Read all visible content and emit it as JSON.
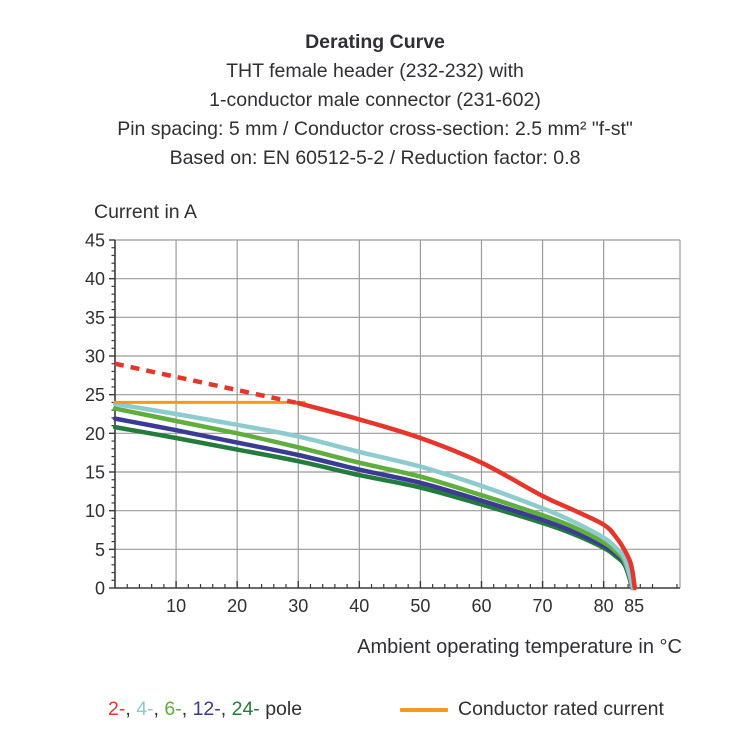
{
  "header": {
    "lines": [
      "Derating Curve",
      "THT female header (232-232) with",
      "1-conductor male connector (231-602)",
      "Pin spacing: 5 mm / Conductor cross-section: 2.5 mm² \"f-st\"",
      "Based on: EN 60512-5-2 / Reduction factor: 0.8"
    ]
  },
  "chart_data": {
    "type": "line",
    "title": "Derating Curve",
    "xlabel": "Ambient operating temperature in °C",
    "ylabel": "Current in A",
    "xlim": [
      0,
      92.5
    ],
    "ylim": [
      0,
      45
    ],
    "x_ticks_major": [
      10,
      20,
      30,
      40,
      50,
      60,
      70,
      80,
      85
    ],
    "x_minor_step": 2,
    "y_ticks_major": [
      0,
      5,
      10,
      15,
      20,
      25,
      30,
      35,
      40,
      45
    ],
    "y_minor_step": 1,
    "x_gridlines": [
      10,
      20,
      30,
      40,
      50,
      60,
      70,
      80
    ],
    "y_gridlines": [
      5,
      10,
      15,
      20,
      25,
      30,
      35,
      40,
      45
    ],
    "grid_on": true,
    "grid_color": "#9b9b9b",
    "axis_color": "#3a3a3a",
    "legend_position": "bottom",
    "series": [
      {
        "name": "24-pole",
        "color": "#237b3c",
        "style": "solid",
        "width": 4.5,
        "points": [
          [
            0,
            20.8
          ],
          [
            10,
            19.4
          ],
          [
            20,
            17.9
          ],
          [
            30,
            16.4
          ],
          [
            40,
            14.6
          ],
          [
            50,
            13.0
          ],
          [
            60,
            10.8
          ],
          [
            70,
            8.4
          ],
          [
            75,
            7.0
          ],
          [
            80,
            5.2
          ],
          [
            82,
            4.1
          ],
          [
            83.5,
            2.9
          ],
          [
            84.7,
            0
          ]
        ]
      },
      {
        "name": "12-pole",
        "color": "#3b3b95",
        "style": "solid",
        "width": 4.5,
        "points": [
          [
            0,
            21.9
          ],
          [
            10,
            20.4
          ],
          [
            20,
            18.8
          ],
          [
            30,
            17.2
          ],
          [
            40,
            15.3
          ],
          [
            50,
            13.6
          ],
          [
            60,
            11.3
          ],
          [
            70,
            8.8
          ],
          [
            75,
            7.3
          ],
          [
            80,
            5.5
          ],
          [
            82,
            4.4
          ],
          [
            83.5,
            3.1
          ],
          [
            84.7,
            0
          ]
        ]
      },
      {
        "name": "6-pole",
        "color": "#60ae3d",
        "style": "solid",
        "width": 4.5,
        "points": [
          [
            0,
            23.2
          ],
          [
            10,
            21.6
          ],
          [
            20,
            20.0
          ],
          [
            30,
            18.2
          ],
          [
            40,
            16.2
          ],
          [
            50,
            14.4
          ],
          [
            60,
            12.0
          ],
          [
            70,
            9.4
          ],
          [
            75,
            7.9
          ],
          [
            80,
            5.9
          ],
          [
            82,
            4.7
          ],
          [
            83.5,
            3.3
          ],
          [
            84.8,
            0
          ]
        ]
      },
      {
        "name": "4-pole",
        "color": "#8dcbce",
        "style": "solid",
        "width": 4.5,
        "points": [
          [
            0,
            23.8
          ],
          [
            10,
            22.5
          ],
          [
            20,
            21.1
          ],
          [
            30,
            19.6
          ],
          [
            40,
            17.6
          ],
          [
            50,
            15.7
          ],
          [
            60,
            13.2
          ],
          [
            70,
            10.3
          ],
          [
            75,
            8.6
          ],
          [
            80,
            6.5
          ],
          [
            82,
            5.2
          ],
          [
            83.5,
            3.7
          ],
          [
            84.8,
            0
          ]
        ]
      },
      {
        "name": "Conductor rated current",
        "color": "#f59a18",
        "style": "solid",
        "width": 3,
        "points": [
          [
            0,
            24
          ],
          [
            31,
            24
          ]
        ]
      },
      {
        "name": "2-pole unreduced",
        "color": "#e6362c",
        "style": "dashed",
        "width": 4.5,
        "points": [
          [
            0,
            29.0
          ],
          [
            10,
            27.3
          ],
          [
            20,
            25.6
          ],
          [
            30,
            23.9
          ]
        ]
      },
      {
        "name": "2-pole",
        "color": "#e6362c",
        "style": "solid",
        "width": 4.5,
        "points": [
          [
            30,
            23.9
          ],
          [
            40,
            21.8
          ],
          [
            50,
            19.4
          ],
          [
            60,
            16.2
          ],
          [
            70,
            11.9
          ],
          [
            75,
            10.1
          ],
          [
            80,
            8.2
          ],
          [
            82,
            6.6
          ],
          [
            83.5,
            4.8
          ],
          [
            84.5,
            3.0
          ],
          [
            85.1,
            0
          ]
        ]
      }
    ]
  },
  "legend": {
    "poles": [
      {
        "label": "2-",
        "color": "#e6362c"
      },
      {
        "label": "4-",
        "color": "#8dcbce"
      },
      {
        "label": "6-",
        "color": "#60ae3d"
      },
      {
        "label": "12-",
        "color": "#3b3b95"
      },
      {
        "label": "24-",
        "color": "#237b3c"
      }
    ],
    "separator": ", ",
    "suffix": " pole",
    "rated_label": "Conductor rated current",
    "rated_color": "#f59a18"
  }
}
